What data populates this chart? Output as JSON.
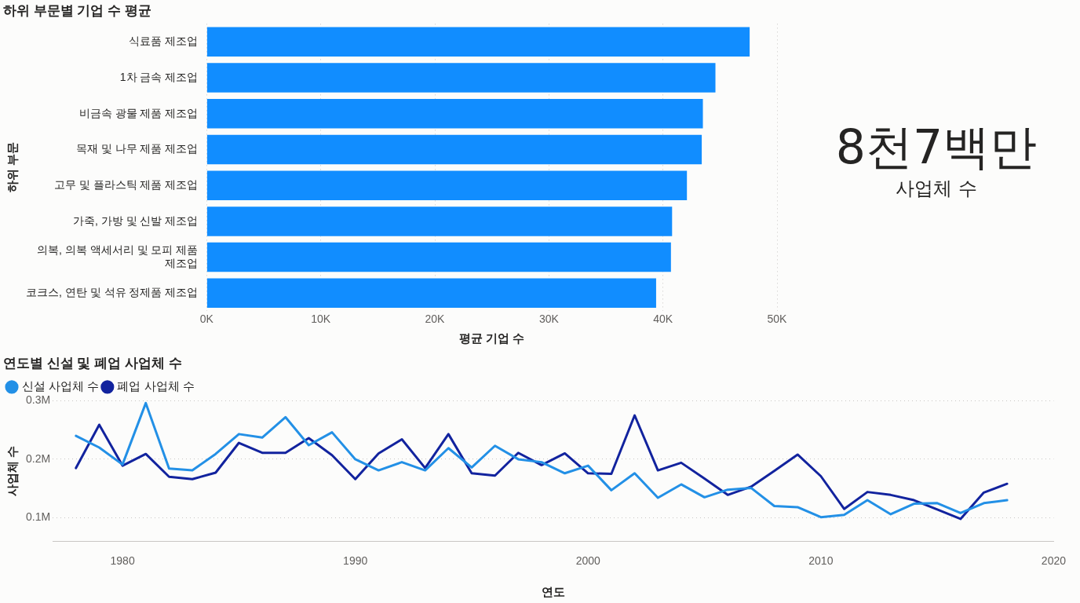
{
  "chart_data": [
    {
      "type": "bar",
      "orientation": "horizontal",
      "title": "하위 부문별 기업 수 평균",
      "xlabel": "평균 기업 수",
      "ylabel": "하위 부문",
      "categories": [
        "식료품 제조업",
        "1차 금속 제조업",
        "비금속 광물 제품 제조업",
        "목재 및 나무 제품 제조업",
        "고무 및 플라스틱 제품 제조업",
        "가죽, 가방 및 신발 제조업",
        "의복, 의복 액세서리 및 모피 제품 제조업",
        "코크스, 연탄 및 석유 정제품 제조업"
      ],
      "values": [
        47600,
        44600,
        43500,
        43400,
        42100,
        40800,
        40700,
        39400
      ],
      "color": "#118dff",
      "xlim": [
        0,
        50000
      ],
      "xticks": [
        {
          "value": 0,
          "label": "0K"
        },
        {
          "value": 10000,
          "label": "10K"
        },
        {
          "value": 20000,
          "label": "20K"
        },
        {
          "value": 30000,
          "label": "30K"
        },
        {
          "value": 40000,
          "label": "40K"
        },
        {
          "value": 50000,
          "label": "50K"
        }
      ],
      "grid": "x"
    },
    {
      "type": "other",
      "title": "8천7백만",
      "subtitle": "사업체 수"
    },
    {
      "type": "line",
      "title": "연도별 신설 및 폐업 사업체 수",
      "xlabel": "연도",
      "ylabel": "사업체 수",
      "legend": "top left",
      "marker": "none",
      "grid": "y",
      "x": [
        1978,
        1979,
        1980,
        1981,
        1982,
        1983,
        1984,
        1985,
        1986,
        1987,
        1988,
        1989,
        1990,
        1991,
        1992,
        1993,
        1994,
        1995,
        1996,
        1997,
        1998,
        1999,
        2000,
        2001,
        2002,
        2003,
        2004,
        2005,
        2006,
        2007,
        2008,
        2009,
        2010,
        2011,
        2012,
        2013,
        2014,
        2015,
        2016,
        2017,
        2018
      ],
      "series": [
        {
          "name": "신설 사업체 수",
          "color": "#2390e6",
          "values": [
            0.24,
            0.22,
            0.191,
            0.296,
            0.184,
            0.181,
            0.209,
            0.243,
            0.237,
            0.272,
            0.224,
            0.246,
            0.2,
            0.181,
            0.195,
            0.181,
            0.219,
            0.186,
            0.223,
            0.2,
            0.195,
            0.176,
            0.189,
            0.147,
            0.176,
            0.134,
            0.157,
            0.135,
            0.148,
            0.151,
            0.12,
            0.118,
            0.101,
            0.105,
            0.13,
            0.106,
            0.124,
            0.125,
            0.108,
            0.125,
            0.13
          ]
        },
        {
          "name": "폐업 사업체 수",
          "color": "#12239e",
          "values": [
            0.185,
            0.259,
            0.189,
            0.209,
            0.17,
            0.166,
            0.177,
            0.228,
            0.211,
            0.211,
            0.236,
            0.207,
            0.166,
            0.21,
            0.234,
            0.185,
            0.243,
            0.176,
            0.172,
            0.211,
            0.19,
            0.21,
            0.176,
            0.175,
            0.275,
            0.181,
            0.194,
            0.167,
            0.139,
            0.153,
            0.18,
            0.208,
            0.171,
            0.115,
            0.144,
            0.139,
            0.13,
            0.114,
            0.098,
            0.143,
            0.158
          ]
        }
      ],
      "xlim": [
        1977,
        2020
      ],
      "xticks": [
        1980,
        1990,
        2000,
        2010,
        2020
      ],
      "ylim": [
        0.06,
        0.3
      ],
      "yticks": [
        {
          "value": 0.1,
          "label": "0.1M"
        },
        {
          "value": 0.2,
          "label": "0.2M"
        },
        {
          "value": 0.3,
          "label": "0.3M"
        }
      ]
    }
  ]
}
